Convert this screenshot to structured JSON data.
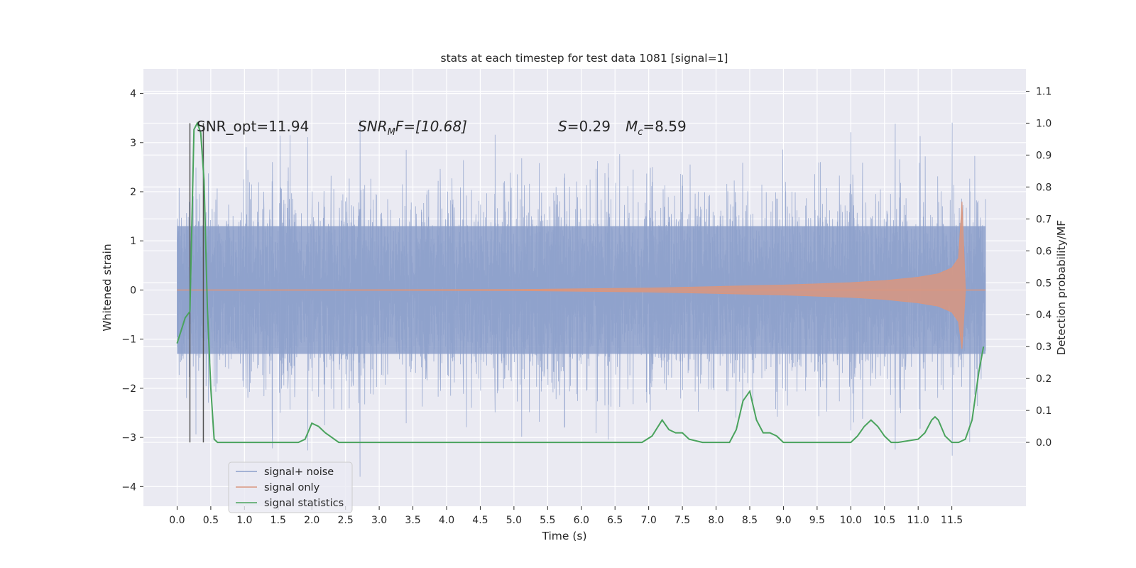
{
  "chart_data": {
    "type": "line",
    "title": "stats at each timestep for test data 1081 [signal=1]",
    "xlabel": "Time (s)",
    "ylabel": "Whitened strain",
    "ylabel_right": "Detection probability/MF",
    "xlim": [
      -0.5,
      12.6
    ],
    "ylim": [
      -4.4,
      4.5
    ],
    "ylim_right": [
      -0.2,
      1.17
    ],
    "xticks": [
      0.0,
      0.5,
      1.0,
      1.5,
      2.0,
      2.5,
      3.0,
      3.5,
      4.0,
      4.5,
      5.0,
      5.5,
      6.0,
      6.5,
      7.0,
      7.5,
      8.0,
      8.5,
      9.0,
      9.5,
      10.0,
      10.5,
      11.0,
      11.5
    ],
    "xtick_labels": [
      "0.0",
      "0.5",
      "1.0",
      "1.5",
      "2.0",
      "2.5",
      "3.0",
      "3.5",
      "4.0",
      "4.5",
      "5.0",
      "5.5",
      "6.0",
      "6.5",
      "7.0",
      "7.5",
      "8.0",
      "8.5",
      "9.0",
      "9.5",
      "10.0",
      "10.5",
      "11.0",
      "11.5"
    ],
    "yticks": [
      -4,
      -3,
      -2,
      -1,
      0,
      1,
      2,
      3,
      4
    ],
    "ytick_labels": [
      "−4",
      "−3",
      "−2",
      "−1",
      "0",
      "1",
      "2",
      "3",
      "4"
    ],
    "yticks_right": [
      0.0,
      0.1,
      0.2,
      0.3,
      0.4,
      0.5,
      0.6,
      0.7,
      0.8,
      0.9,
      1.0,
      1.1
    ],
    "ytick_labels_right": [
      "0.0",
      "0.1",
      "0.2",
      "0.3",
      "0.4",
      "0.5",
      "0.6",
      "0.7",
      "0.8",
      "0.9",
      "1.0",
      "1.1"
    ],
    "grid": true,
    "legend_placement": "lower-left",
    "annotations": {
      "snr_opt": "SNR_opt=11.94",
      "snr_mf_main": "SNR",
      "snr_mf_sub": "M",
      "snr_mf_rest": "F=[10.68]",
      "s_main": "S",
      "s_rest": "=0.29",
      "mc_main": "M",
      "mc_sub": "c",
      "mc_rest": "=8.59"
    },
    "vertical_lines_x": [
      0.19,
      0.39
    ],
    "series": [
      {
        "name": "signal+ noise",
        "color": "#8da0cb",
        "axis": "left",
        "x_range": [
          0.0,
          12.0
        ],
        "envelope_core": 1.3,
        "envelope_peak": 3.8
      },
      {
        "name": "signal only",
        "color": "#d9967f",
        "axis": "left",
        "x": [
          0.0,
          5.0,
          7.0,
          8.0,
          9.0,
          10.0,
          10.5,
          11.0,
          11.3,
          11.5,
          11.6,
          11.65,
          11.7
        ],
        "amplitude": [
          0.0,
          0.01,
          0.04,
          0.07,
          0.1,
          0.15,
          0.19,
          0.26,
          0.33,
          0.45,
          0.65,
          1.8,
          0.02
        ]
      },
      {
        "name": "signal statistics",
        "color": "#4aa35d",
        "axis": "right",
        "x": [
          0.0,
          0.12,
          0.19,
          0.25,
          0.3,
          0.35,
          0.4,
          0.45,
          0.5,
          0.55,
          0.6,
          0.7,
          1.0,
          1.5,
          1.8,
          1.9,
          2.0,
          2.1,
          2.2,
          2.4,
          3.0,
          4.0,
          4.5,
          5.0,
          5.5,
          6.0,
          6.5,
          6.9,
          7.05,
          7.2,
          7.3,
          7.4,
          7.5,
          7.6,
          7.8,
          8.0,
          8.2,
          8.3,
          8.4,
          8.5,
          8.6,
          8.7,
          8.8,
          8.9,
          9.0,
          9.3,
          10.0,
          10.1,
          10.2,
          10.3,
          10.4,
          10.5,
          10.6,
          10.7,
          11.0,
          11.1,
          11.2,
          11.25,
          11.3,
          11.4,
          11.5,
          11.6,
          11.7,
          11.8,
          11.9,
          11.97
        ],
        "y": [
          0.31,
          0.39,
          0.41,
          0.98,
          1.0,
          0.97,
          0.82,
          0.42,
          0.17,
          0.01,
          0.0,
          0.0,
          0.0,
          0.0,
          0.0,
          0.01,
          0.06,
          0.05,
          0.03,
          0.0,
          0.0,
          0.0,
          0.0,
          0.0,
          0.0,
          0.0,
          0.0,
          0.0,
          0.02,
          0.07,
          0.04,
          0.03,
          0.03,
          0.01,
          0.0,
          0.0,
          0.0,
          0.04,
          0.13,
          0.16,
          0.07,
          0.03,
          0.03,
          0.02,
          0.0,
          0.0,
          0.0,
          0.02,
          0.05,
          0.07,
          0.05,
          0.02,
          0.0,
          0.0,
          0.01,
          0.03,
          0.07,
          0.08,
          0.07,
          0.02,
          0.0,
          0.0,
          0.01,
          0.07,
          0.22,
          0.3
        ]
      }
    ]
  }
}
